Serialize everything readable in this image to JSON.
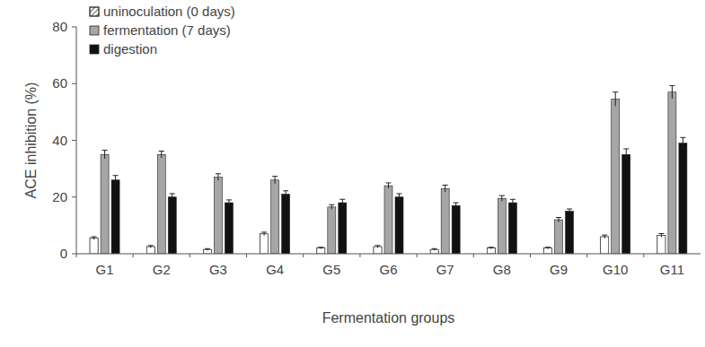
{
  "chart_data": {
    "type": "bar",
    "x_label": "Fermentation groups",
    "y_label": "ACE inhibition (%)",
    "categories": [
      "G1",
      "G2",
      "G3",
      "G4",
      "G5",
      "G6",
      "G7",
      "G8",
      "G9",
      "G10",
      "G11"
    ],
    "series": [
      {
        "name": "uninoculation (0 days)",
        "color": "#ffffff",
        "values": [
          5.5,
          2.5,
          1.5,
          7,
          2,
          2.5,
          1.5,
          2,
          2,
          6,
          6.5
        ],
        "errors": [
          0.5,
          0.4,
          0.3,
          0.6,
          0.3,
          0.4,
          0.3,
          0.3,
          0.3,
          0.6,
          0.6
        ]
      },
      {
        "name": "fermentation (7 days)",
        "color": "#a6a6a6",
        "values": [
          35,
          35,
          27,
          26,
          16.5,
          24,
          23,
          19.5,
          12,
          54.5,
          57
        ],
        "errors": [
          1.5,
          1.2,
          1.2,
          1.3,
          0.8,
          1.0,
          1.2,
          1.0,
          0.8,
          2.5,
          2.3
        ]
      },
      {
        "name": "digestion",
        "color": "#111111",
        "values": [
          26,
          20,
          18,
          21,
          18,
          20,
          17,
          18,
          15,
          35,
          39
        ],
        "errors": [
          1.6,
          1.2,
          1.0,
          1.2,
          1.2,
          1.2,
          1.0,
          1.2,
          0.8,
          2.0,
          2.0
        ]
      }
    ],
    "ylim": [
      0,
      80
    ],
    "yticks": [
      0,
      20,
      40,
      60,
      80
    ],
    "grid": false,
    "legend": "upper-left"
  }
}
